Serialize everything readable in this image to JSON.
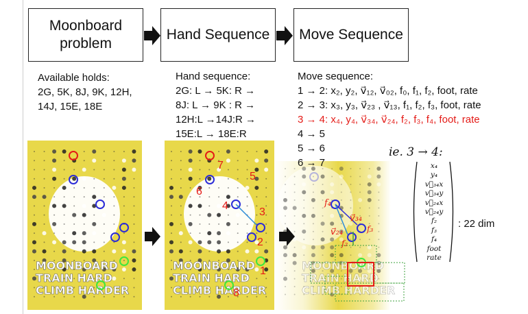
{
  "stages": [
    {
      "title": "Moonboard\nproblem"
    },
    {
      "title": "Hand Sequence"
    },
    {
      "title": "Move Sequence"
    }
  ],
  "available_holds": {
    "heading": "Available holds:",
    "lines": [
      "2G, 5K, 8J, 9K, 12H,",
      "14J, 15E, 18E"
    ]
  },
  "hand_sequence": {
    "heading": "Hand sequence:",
    "lines": [
      "2G: L → 5K: R →",
      "8J: L → 9K : R →",
      "12H:L →14J:R →",
      "15E:L → 18E:R"
    ]
  },
  "move_sequence": {
    "heading": "Move sequence:",
    "lines": [
      {
        "text": "1 → 2: x₂, y₂, v⃗₁₂, v⃗₀₂, f₀, f₁, f₂, foot, rate",
        "highlight": false
      },
      {
        "text": "2 → 3: x₃, y₃, v⃗₂₃ , v⃗₁₃, f₁, f₂, f₃, foot, rate",
        "highlight": false
      },
      {
        "text": "3 → 4: x₄, y₄, v⃗₃₄, v⃗₂₄, f₂, f₃, f₄, foot, rate",
        "highlight": true
      },
      {
        "text": "4 → 5",
        "highlight": false
      },
      {
        "text": "5 → 6",
        "highlight": false
      },
      {
        "text": "6 → 7",
        "highlight": false
      }
    ]
  },
  "example": {
    "label": "ie. 3 → 4:",
    "vector": [
      "x₄",
      "y₄",
      "v⃗₃₄x",
      "v⃗₃₄y",
      "v⃗₂₄x",
      "v⃗₂₄y",
      "f₂",
      "f₃",
      "f₄",
      "foot",
      "rate"
    ],
    "dim": ": 22 dim"
  },
  "board_text": [
    "MOONBOARD",
    "TRAIN HARD",
    "CLIMB HARDER"
  ],
  "hand_numbers": [
    "1",
    "2",
    "3",
    "4",
    "5",
    "6",
    "7",
    "8"
  ],
  "move_labels": [
    "f₄",
    "v⃗₃₄",
    "v⃗₂₄",
    "f₃",
    "f₂"
  ],
  "colors": {
    "start": "#3ee63e",
    "middle": "#2b2bd8",
    "end": "#e41b17",
    "annotation": "#e41b17",
    "board": "#e8d84a"
  }
}
